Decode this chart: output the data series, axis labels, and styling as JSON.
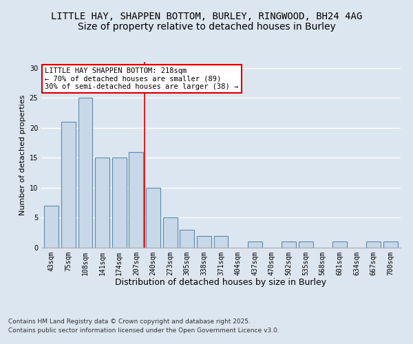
{
  "title_line1": "LITTLE HAY, SHAPPEN BOTTOM, BURLEY, RINGWOOD, BH24 4AG",
  "title_line2": "Size of property relative to detached houses in Burley",
  "xlabel": "Distribution of detached houses by size in Burley",
  "ylabel": "Number of detached properties",
  "categories": [
    "43sqm",
    "75sqm",
    "108sqm",
    "141sqm",
    "174sqm",
    "207sqm",
    "240sqm",
    "273sqm",
    "305sqm",
    "338sqm",
    "371sqm",
    "404sqm",
    "437sqm",
    "470sqm",
    "502sqm",
    "535sqm",
    "568sqm",
    "601sqm",
    "634sqm",
    "667sqm",
    "700sqm"
  ],
  "values": [
    7,
    21,
    25,
    15,
    15,
    16,
    10,
    5,
    3,
    2,
    2,
    0,
    1,
    0,
    1,
    1,
    0,
    1,
    0,
    1,
    1
  ],
  "bar_color": "#c8d8e8",
  "bar_edge_color": "#5a8ab0",
  "vline_x_index": 5.5,
  "vline_color": "#cc0000",
  "annotation_text": "LITTLE HAY SHAPPEN BOTTOM: 218sqm\n← 70% of detached houses are smaller (89)\n30% of semi-detached houses are larger (38) →",
  "annotation_box_color": "#ffffff",
  "annotation_box_edge_color": "#cc0000",
  "annotation_fontsize": 7.5,
  "ylim": [
    0,
    31
  ],
  "yticks": [
    0,
    5,
    10,
    15,
    20,
    25,
    30
  ],
  "background_color": "#dce6f0",
  "plot_background_color": "#dce6f0",
  "grid_color": "#ffffff",
  "title_fontsize": 10,
  "subtitle_fontsize": 10,
  "xlabel_fontsize": 9,
  "ylabel_fontsize": 8,
  "tick_fontsize": 7,
  "footnote_line1": "Contains HM Land Registry data © Crown copyright and database right 2025.",
  "footnote_line2": "Contains public sector information licensed under the Open Government Licence v3.0.",
  "footnote_fontsize": 6.5
}
